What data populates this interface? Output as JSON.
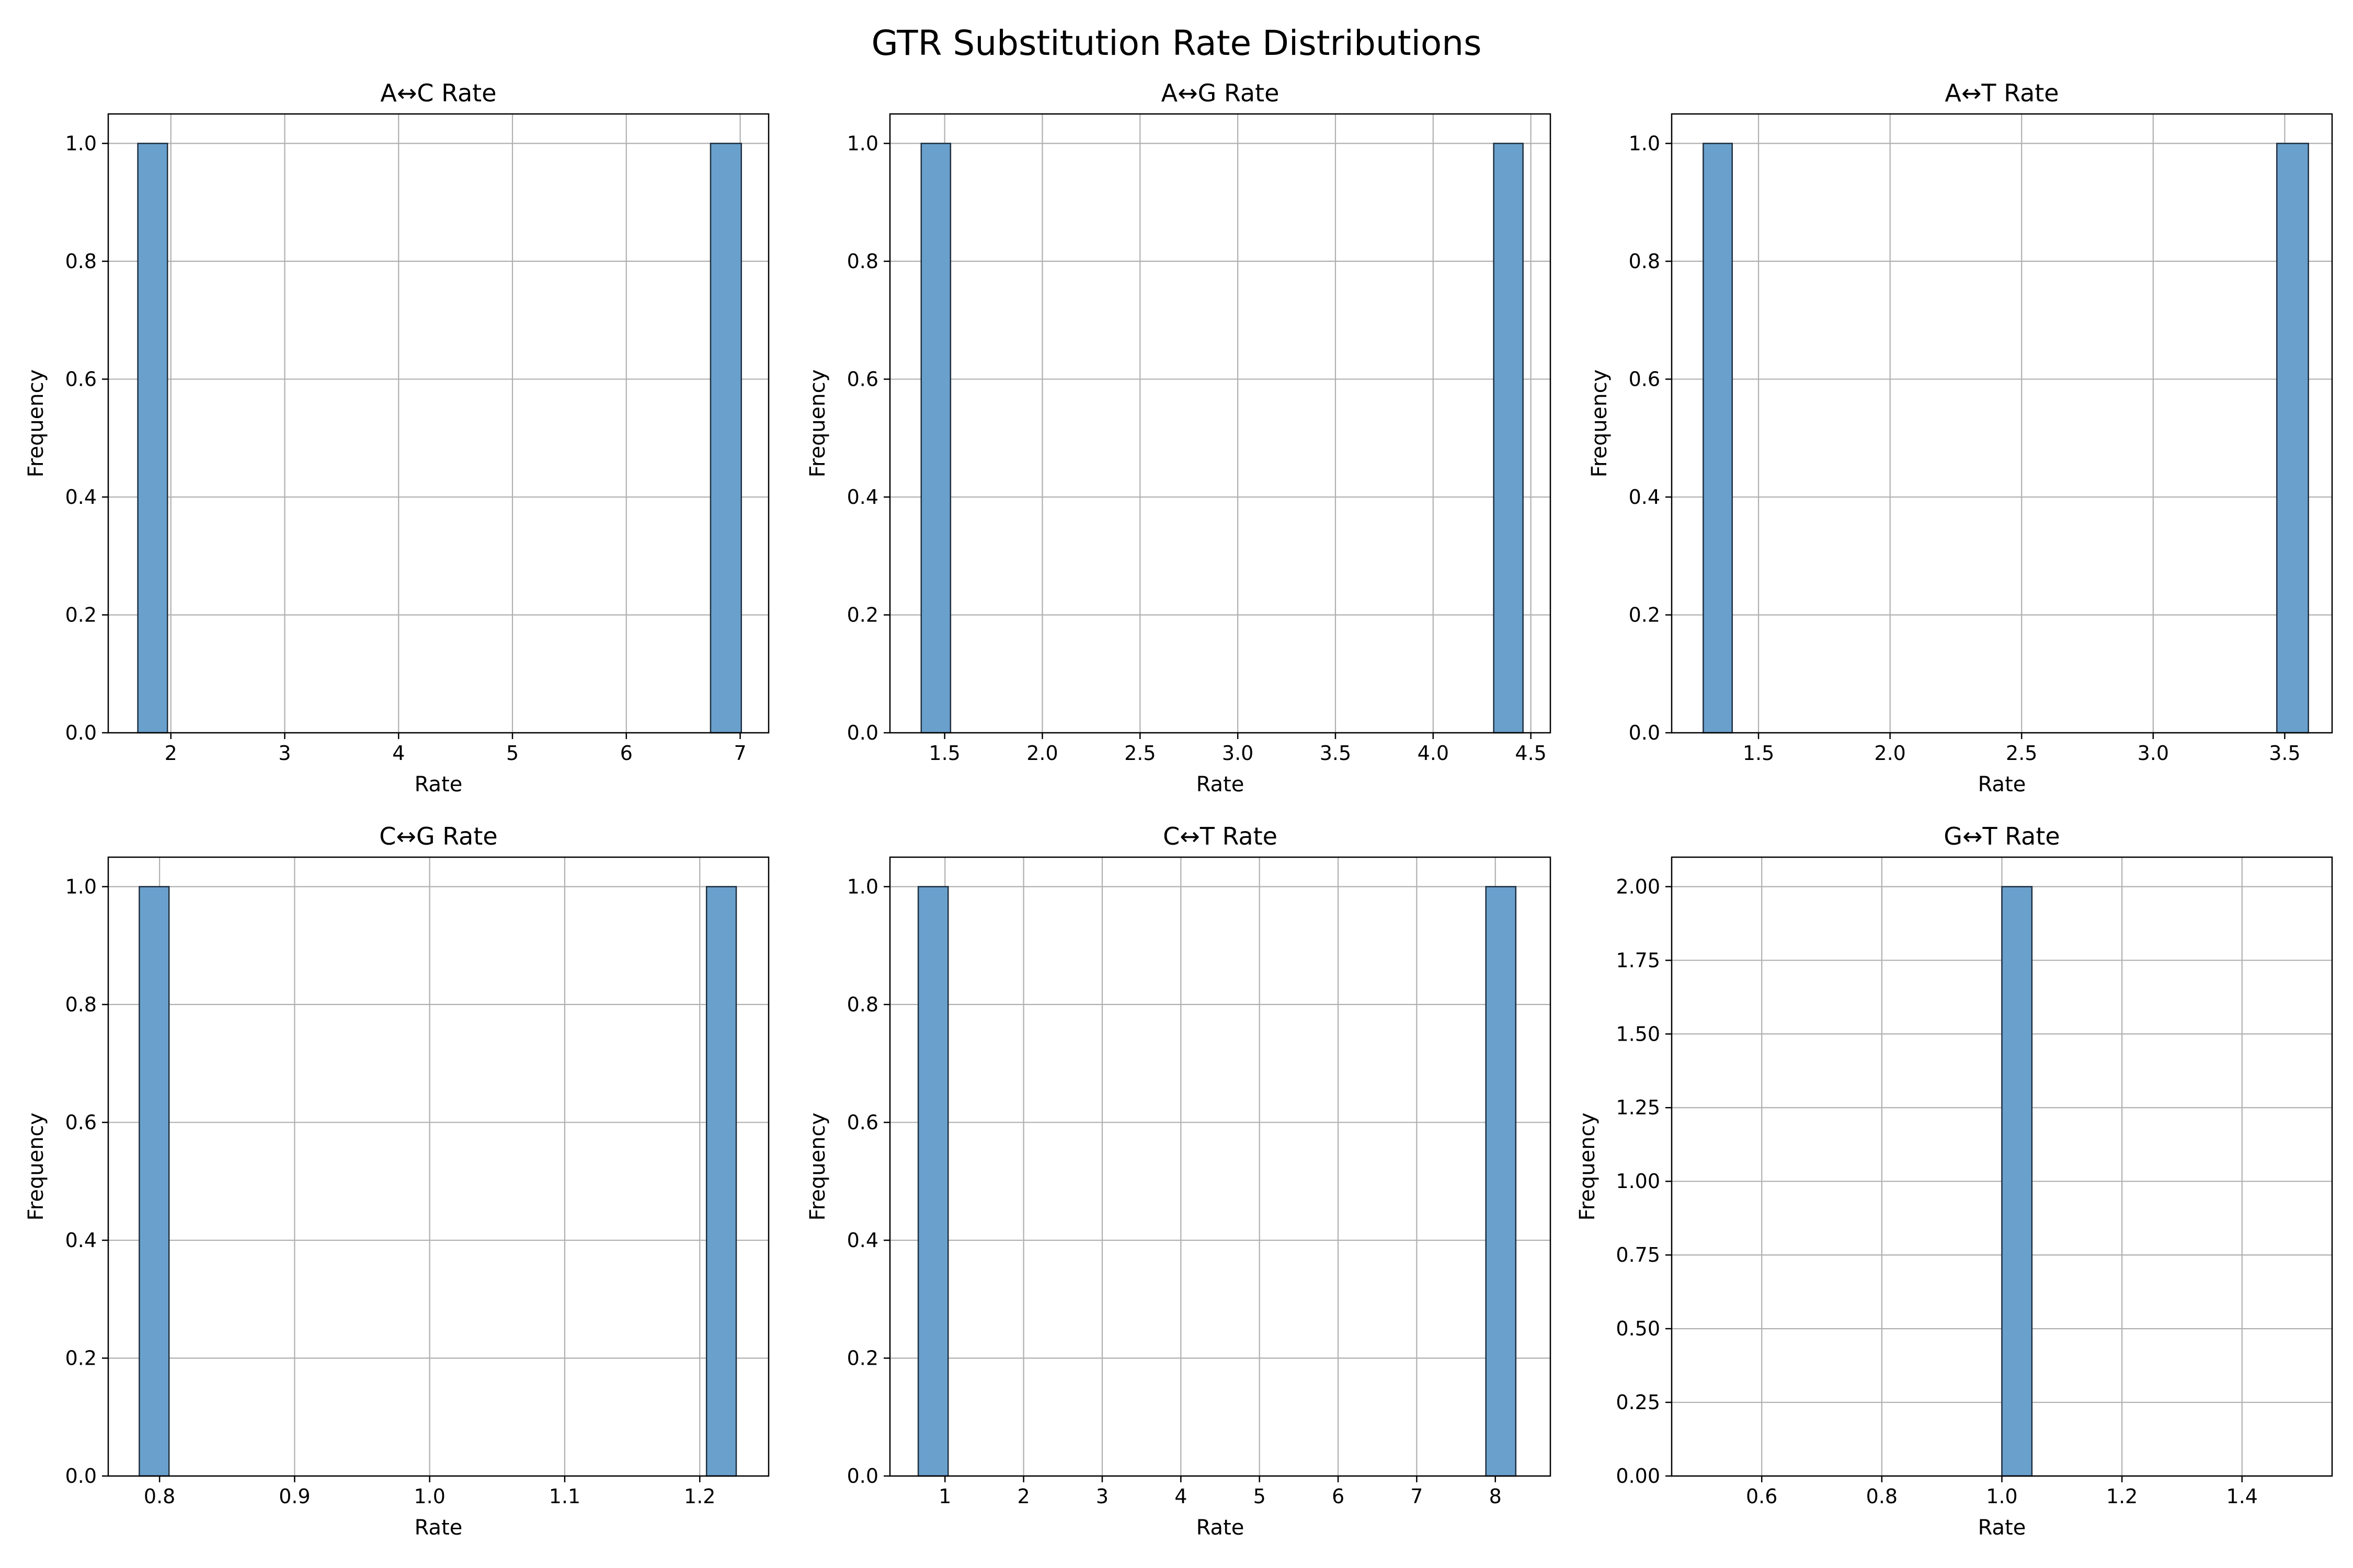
{
  "figure": {
    "title": "GTR Substitution Rate Distributions",
    "bar_color": "#6aa0cc",
    "bar_edge_color": "#1f2f3f",
    "grid_color": "#b0b0b0",
    "grid": true,
    "background": "#ffffff"
  },
  "chart_data": [
    {
      "type": "bar",
      "title": "A↔C Rate",
      "xlabel": "Rate",
      "ylabel": "Frequency",
      "xlim": [
        1.45,
        7.25
      ],
      "ylim": [
        0,
        1.05
      ],
      "xticks": [
        2,
        3,
        4,
        5,
        6,
        7
      ],
      "xtick_labels": [
        "2",
        "3",
        "4",
        "5",
        "6",
        "7"
      ],
      "yticks": [
        0.0,
        0.2,
        0.4,
        0.6,
        0.8,
        1.0
      ],
      "ytick_labels": [
        "0.0",
        "0.2",
        "0.4",
        "0.6",
        "0.8",
        "1.0"
      ],
      "bins": [
        1.71,
        1.97,
        2.24,
        2.5,
        2.77,
        3.03,
        3.3,
        3.56,
        3.83,
        4.09,
        4.36,
        4.62,
        4.89,
        5.15,
        5.42,
        5.68,
        5.95,
        6.21,
        6.48,
        6.74,
        7.01
      ],
      "counts": [
        1,
        0,
        0,
        0,
        0,
        0,
        0,
        0,
        0,
        0,
        0,
        0,
        0,
        0,
        0,
        0,
        0,
        0,
        0,
        1
      ]
    },
    {
      "type": "bar",
      "title": "A↔G Rate",
      "xlabel": "Rate",
      "ylabel": "Frequency",
      "xlim": [
        1.22,
        4.6
      ],
      "ylim": [
        0,
        1.05
      ],
      "xticks": [
        1.5,
        2.0,
        2.5,
        3.0,
        3.5,
        4.0,
        4.5
      ],
      "xtick_labels": [
        "1.5",
        "2.0",
        "2.5",
        "3.0",
        "3.5",
        "4.0",
        "4.5"
      ],
      "yticks": [
        0.0,
        0.2,
        0.4,
        0.6,
        0.8,
        1.0
      ],
      "ytick_labels": [
        "0.0",
        "0.2",
        "0.4",
        "0.6",
        "0.8",
        "1.0"
      ],
      "bins": [
        1.38,
        1.53,
        1.69,
        1.84,
        2.0,
        2.15,
        2.3,
        2.46,
        2.61,
        2.77,
        2.92,
        3.07,
        3.23,
        3.38,
        3.54,
        3.69,
        3.84,
        4.0,
        4.15,
        4.31,
        4.46
      ],
      "counts": [
        1,
        0,
        0,
        0,
        0,
        0,
        0,
        0,
        0,
        0,
        0,
        0,
        0,
        0,
        0,
        0,
        0,
        0,
        0,
        1
      ]
    },
    {
      "type": "bar",
      "title": "A↔T Rate",
      "xlabel": "Rate",
      "ylabel": "Frequency",
      "xlim": [
        1.17,
        3.68
      ],
      "ylim": [
        0,
        1.05
      ],
      "xticks": [
        1.5,
        2.0,
        2.5,
        3.0,
        3.5
      ],
      "xtick_labels": [
        "1.5",
        "2.0",
        "2.5",
        "3.0",
        "3.5"
      ],
      "yticks": [
        0.0,
        0.2,
        0.4,
        0.6,
        0.8,
        1.0
      ],
      "ytick_labels": [
        "0.0",
        "0.2",
        "0.4",
        "0.6",
        "0.8",
        "1.0"
      ],
      "bins": [
        1.29,
        1.4,
        1.52,
        1.63,
        1.75,
        1.86,
        1.98,
        2.09,
        2.21,
        2.32,
        2.44,
        2.55,
        2.67,
        2.78,
        2.9,
        3.01,
        3.13,
        3.24,
        3.36,
        3.47,
        3.59
      ],
      "counts": [
        1,
        0,
        0,
        0,
        0,
        0,
        0,
        0,
        0,
        0,
        0,
        0,
        0,
        0,
        0,
        0,
        0,
        0,
        0,
        1
      ]
    },
    {
      "type": "bar",
      "title": "C↔G Rate",
      "xlabel": "Rate",
      "ylabel": "Frequency",
      "xlim": [
        0.762,
        1.251
      ],
      "ylim": [
        0,
        1.05
      ],
      "xticks": [
        0.8,
        0.9,
        1.0,
        1.1,
        1.2
      ],
      "xtick_labels": [
        "0.8",
        "0.9",
        "1.0",
        "1.1",
        "1.2"
      ],
      "yticks": [
        0.0,
        0.2,
        0.4,
        0.6,
        0.8,
        1.0
      ],
      "ytick_labels": [
        "0.0",
        "0.2",
        "0.4",
        "0.6",
        "0.8",
        "1.0"
      ],
      "bins": [
        0.785,
        0.807,
        0.829,
        0.851,
        0.873,
        0.895,
        0.917,
        0.94,
        0.962,
        0.984,
        1.006,
        1.028,
        1.05,
        1.072,
        1.094,
        1.116,
        1.139,
        1.161,
        1.183,
        1.205,
        1.227
      ],
      "counts": [
        1,
        0,
        0,
        0,
        0,
        0,
        0,
        0,
        0,
        0,
        0,
        0,
        0,
        0,
        0,
        0,
        0,
        0,
        0,
        1
      ]
    },
    {
      "type": "bar",
      "title": "C↔T Rate",
      "xlabel": "Rate",
      "ylabel": "Frequency",
      "xlim": [
        0.3,
        8.7
      ],
      "ylim": [
        0,
        1.05
      ],
      "xticks": [
        1,
        2,
        3,
        4,
        5,
        6,
        7,
        8
      ],
      "xtick_labels": [
        "1",
        "2",
        "3",
        "4",
        "5",
        "6",
        "7",
        "8"
      ],
      "yticks": [
        0.0,
        0.2,
        0.4,
        0.6,
        0.8,
        1.0
      ],
      "ytick_labels": [
        "0.0",
        "0.2",
        "0.4",
        "0.6",
        "0.8",
        "1.0"
      ],
      "bins": [
        0.66,
        1.04,
        1.42,
        1.8,
        2.18,
        2.56,
        2.94,
        3.32,
        3.7,
        4.08,
        4.46,
        4.84,
        5.22,
        5.6,
        5.98,
        6.36,
        6.74,
        7.12,
        7.5,
        7.88,
        8.26
      ],
      "counts": [
        1,
        0,
        0,
        0,
        0,
        0,
        0,
        0,
        0,
        0,
        0,
        0,
        0,
        0,
        0,
        0,
        0,
        0,
        0,
        1
      ]
    },
    {
      "type": "bar",
      "title": "G↔T Rate",
      "xlabel": "Rate",
      "ylabel": "Frequency",
      "xlim": [
        0.45,
        1.55
      ],
      "ylim": [
        0,
        2.1
      ],
      "xticks": [
        0.6,
        0.8,
        1.0,
        1.2,
        1.4
      ],
      "xtick_labels": [
        "0.6",
        "0.8",
        "1.0",
        "1.2",
        "1.4"
      ],
      "yticks": [
        0.0,
        0.25,
        0.5,
        0.75,
        1.0,
        1.25,
        1.5,
        1.75,
        2.0
      ],
      "ytick_labels": [
        "0.00",
        "0.25",
        "0.50",
        "0.75",
        "1.00",
        "1.25",
        "1.50",
        "1.75",
        "2.00"
      ],
      "bins": [
        0.5,
        0.55,
        0.6,
        0.65,
        0.7,
        0.75,
        0.8,
        0.85,
        0.9,
        0.95,
        1.0,
        1.05,
        1.1,
        1.15,
        1.2,
        1.25,
        1.3,
        1.35,
        1.4,
        1.45,
        1.5
      ],
      "counts": [
        0,
        0,
        0,
        0,
        0,
        0,
        0,
        0,
        0,
        0,
        2,
        0,
        0,
        0,
        0,
        0,
        0,
        0,
        0,
        0
      ]
    }
  ]
}
